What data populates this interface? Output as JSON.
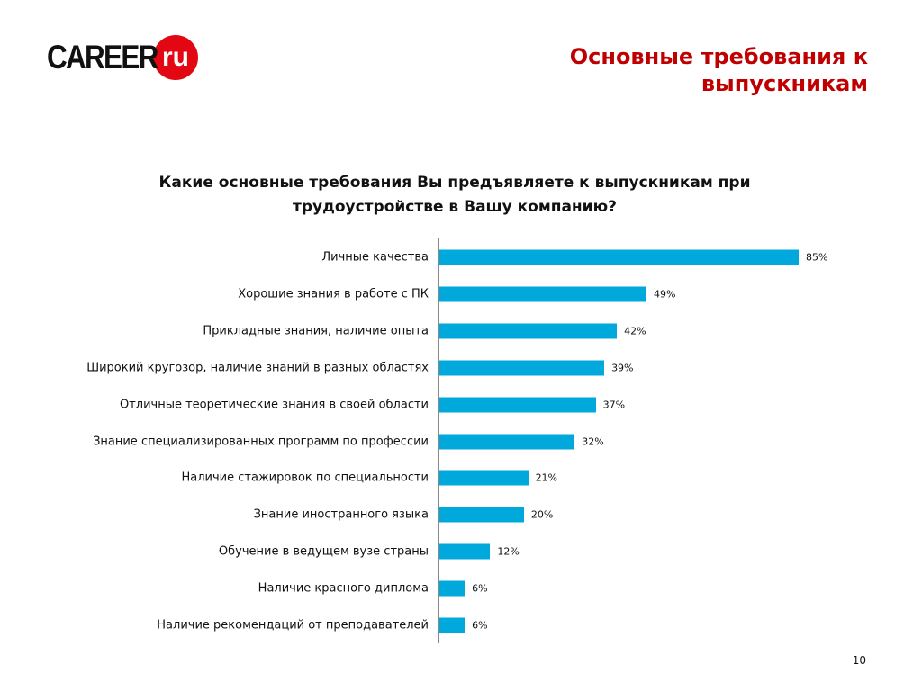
{
  "logo": {
    "text": "CAREER",
    "badge": "ru"
  },
  "header": {
    "title_line1": "Основные требования к",
    "title_line2": "выпускникам"
  },
  "page_number": "10",
  "chart_data": {
    "type": "bar",
    "orientation": "horizontal",
    "title": "Какие основные требования Вы предъявляете к выпускникам при трудоустройстве в Вашу компанию?",
    "title_line1": "Какие основные требования Вы предъявляете к выпускникам при",
    "title_line2": "трудоустройстве в Вашу компанию?",
    "categories": [
      "Личные качества",
      "Хорошие знания в работе с ПК",
      "Прикладные знания, наличие опыта",
      "Широкий кругозор, наличие знаний в разных областях",
      "Отличные теоретические знания в своей области",
      "Знание специализированных программ по профессии",
      "Наличие стажировок по специальности",
      "Знание иностранного языка",
      "Обучение в ведущем вузе страны",
      "Наличие красного диплома",
      "Наличие рекомендаций от преподавателей"
    ],
    "values": [
      85,
      49,
      42,
      39,
      37,
      32,
      21,
      20,
      12,
      6,
      6
    ],
    "labels": [
      "85%",
      "49%",
      "42%",
      "39%",
      "37%",
      "32%",
      "21%",
      "20%",
      "12%",
      "6%",
      "6%"
    ],
    "xlim": [
      0,
      100
    ],
    "bar_color": "#00a8dc",
    "grid": false
  }
}
